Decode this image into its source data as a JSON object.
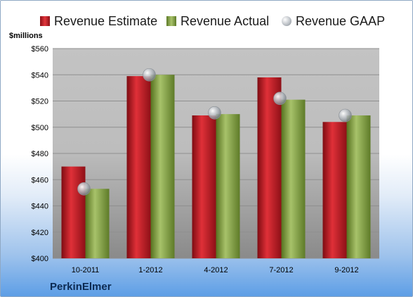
{
  "legend": {
    "estimate_label": "Revenue Estimate",
    "actual_label": "Revenue Actual",
    "gaap_label": "Revenue GAAP"
  },
  "unit_label": "$millions",
  "company": "PerkinElmer",
  "colors": {
    "estimate": "#c8202a",
    "actual": "#8fab4e",
    "gaap": "#c6cacf",
    "plot_bg": "#c0c0c0"
  },
  "chart_data": {
    "type": "bar",
    "categories": [
      "10-2011",
      "1-2012",
      "4-2012",
      "7-2012",
      "9-2012"
    ],
    "series": [
      {
        "name": "Revenue Estimate",
        "values": [
          470,
          539,
          509,
          538,
          504
        ]
      },
      {
        "name": "Revenue Actual",
        "values": [
          453,
          540,
          510,
          521,
          509
        ]
      },
      {
        "name": "Revenue GAAP",
        "values": [
          453,
          540,
          511,
          522,
          509
        ]
      }
    ],
    "ylabel": "$millions",
    "ylim": [
      400,
      560
    ],
    "yticks": [
      "$400",
      "$420",
      "$440",
      "$460",
      "$480",
      "$500",
      "$520",
      "$540",
      "$560"
    ],
    "ytick_values": [
      400,
      420,
      440,
      460,
      480,
      500,
      520,
      540,
      560
    ],
    "grid": true,
    "legend": "top"
  }
}
